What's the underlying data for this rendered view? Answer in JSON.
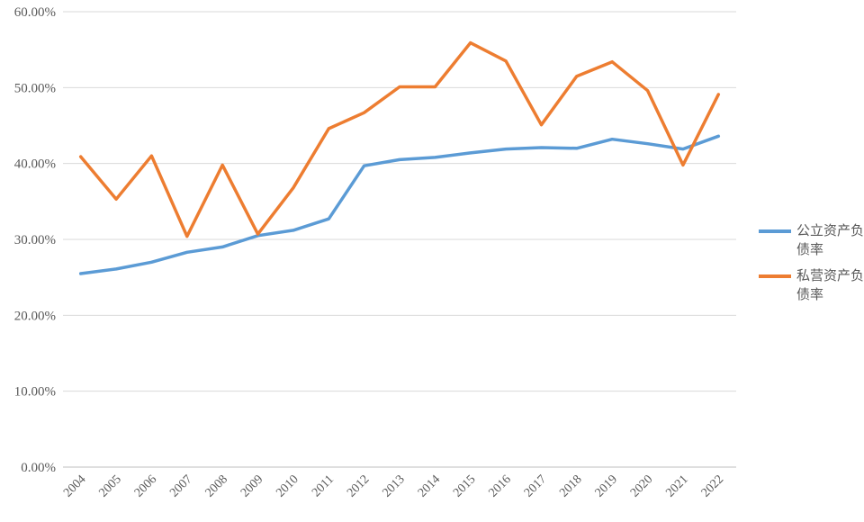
{
  "chart_data": {
    "type": "line",
    "title": "",
    "xlabel": "",
    "ylabel": "",
    "x": [
      "2004",
      "2005",
      "2006",
      "2007",
      "2008",
      "2009",
      "2010",
      "2011",
      "2012",
      "2013",
      "2014",
      "2015",
      "2016",
      "2017",
      "2018",
      "2019",
      "2020",
      "2021",
      "2022"
    ],
    "y_ticks": [
      "0.00%",
      "10.00%",
      "20.00%",
      "30.00%",
      "40.00%",
      "50.00%",
      "60.00%"
    ],
    "ylim": [
      0,
      60
    ],
    "grid": true,
    "legend_position": "right",
    "series": [
      {
        "name": "公立资产负债率",
        "color": "#5B9BD5",
        "values": [
          25.5,
          26.1,
          27.0,
          28.3,
          29.0,
          30.5,
          31.2,
          32.7,
          39.7,
          40.5,
          40.8,
          41.4,
          41.9,
          42.1,
          42.0,
          43.2,
          42.6,
          41.9,
          43.6
        ]
      },
      {
        "name": "私营资产负债率",
        "color": "#ED7D31",
        "values": [
          40.9,
          35.3,
          41.0,
          30.4,
          39.8,
          30.7,
          36.8,
          44.6,
          46.7,
          50.1,
          50.1,
          55.9,
          53.5,
          45.1,
          51.5,
          53.4,
          49.6,
          39.8,
          49.1
        ]
      }
    ]
  }
}
